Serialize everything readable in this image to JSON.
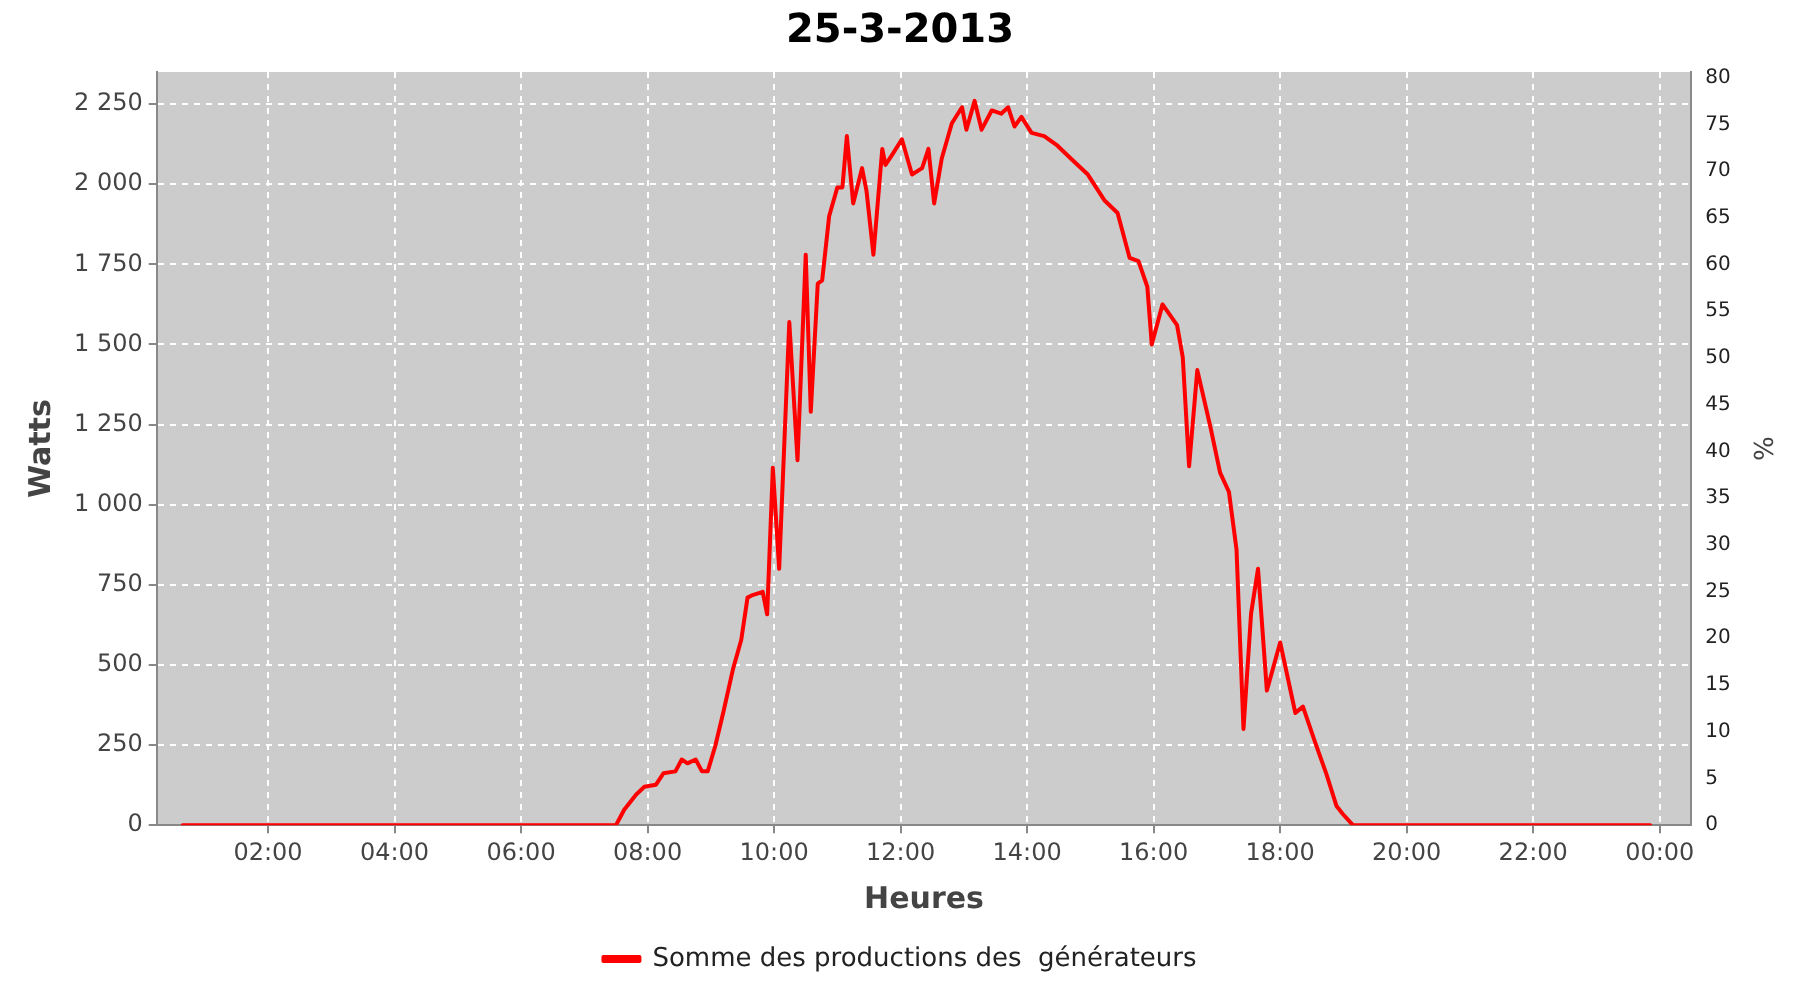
{
  "chart_data": {
    "type": "line",
    "title": "25-3-2013",
    "xlabel": "Heures",
    "ylabel": "Watts",
    "y2label": "%",
    "x": [
      0.65,
      2,
      4,
      6,
      7.5,
      7.63,
      7.82,
      7.95,
      8.13,
      8.25,
      8.44,
      8.54,
      8.63,
      8.76,
      8.86,
      8.95,
      9.07,
      9.2,
      9.35,
      9.48,
      9.58,
      9.66,
      9.82,
      9.89,
      9.98,
      10.08,
      10.24,
      10.37,
      10.5,
      10.58,
      10.69,
      10.76,
      10.87,
      11.0,
      11.08,
      11.15,
      11.25,
      11.39,
      11.46,
      11.57,
      11.71,
      11.76,
      11.86,
      12.02,
      12.18,
      12.34,
      12.44,
      12.53,
      12.65,
      12.81,
      12.97,
      13.04,
      13.17,
      13.28,
      13.44,
      13.59,
      13.7,
      13.8,
      13.91,
      14.07,
      14.27,
      14.48,
      14.69,
      14.96,
      15.22,
      15.43,
      15.62,
      15.76,
      15.9,
      15.97,
      16.14,
      16.37,
      16.46,
      16.56,
      16.69,
      16.9,
      17.05,
      17.19,
      17.31,
      17.42,
      17.54,
      17.65,
      17.79,
      18.0,
      18.24,
      18.36,
      18.55,
      18.73,
      18.89,
      18.99,
      19.15,
      20,
      22,
      23.85
    ],
    "series": [
      {
        "name": "Somme des productions des  générateurs",
        "color": "#ff0000",
        "values": [
          0,
          0,
          0,
          0,
          0,
          48,
          96,
          120,
          126,
          162,
          168,
          205,
          193,
          205,
          168,
          168,
          247,
          355,
          487,
          578,
          710,
          718,
          728,
          658,
          1115,
          800,
          1570,
          1139,
          1780,
          1290,
          1690,
          1700,
          1900,
          1990,
          1990,
          2150,
          1940,
          2050,
          1980,
          1780,
          2110,
          2060,
          2090,
          2140,
          2030,
          2050,
          2110,
          1940,
          2080,
          2190,
          2240,
          2170,
          2260,
          2170,
          2230,
          2220,
          2240,
          2180,
          2210,
          2160,
          2150,
          2120,
          2080,
          2030,
          1950,
          1910,
          1770,
          1760,
          1680,
          1500,
          1625,
          1560,
          1460,
          1120,
          1420,
          1240,
          1100,
          1040,
          860,
          300,
          660,
          800,
          420,
          570,
          350,
          370,
          260,
          160,
          60,
          35,
          0,
          0,
          0,
          0
        ]
      }
    ],
    "xlim": [
      0.24,
      24.5
    ],
    "xticks": [
      {
        "value": 2,
        "label": "02:00"
      },
      {
        "value": 4,
        "label": "04:00"
      },
      {
        "value": 6,
        "label": "06:00"
      },
      {
        "value": 8,
        "label": "08:00"
      },
      {
        "value": 10,
        "label": "10:00"
      },
      {
        "value": 12,
        "label": "12:00"
      },
      {
        "value": 14,
        "label": "14:00"
      },
      {
        "value": 16,
        "label": "16:00"
      },
      {
        "value": 18,
        "label": "18:00"
      },
      {
        "value": 20,
        "label": "20:00"
      },
      {
        "value": 22,
        "label": "22:00"
      },
      {
        "value": 24,
        "label": "00:00"
      }
    ],
    "ylim": [
      0,
      2350
    ],
    "yticks": [
      0,
      250,
      500,
      750,
      {
        "value": 1000,
        "label": "1 000"
      },
      {
        "value": 1250,
        "label": "1 250"
      },
      {
        "value": 1500,
        "label": "1 500"
      },
      {
        "value": 1750,
        "label": "1 750"
      },
      {
        "value": 2000,
        "label": "2 000"
      },
      {
        "value": 2250,
        "label": "2 250"
      }
    ],
    "y2lim": [
      0,
      80.6
    ],
    "y2ticks": [
      0,
      5,
      10,
      15,
      20,
      25,
      30,
      35,
      40,
      45,
      50,
      55,
      60,
      65,
      70,
      75,
      80
    ],
    "grid": true,
    "legend": "bottom",
    "marker": "none",
    "line_style": "solid"
  }
}
